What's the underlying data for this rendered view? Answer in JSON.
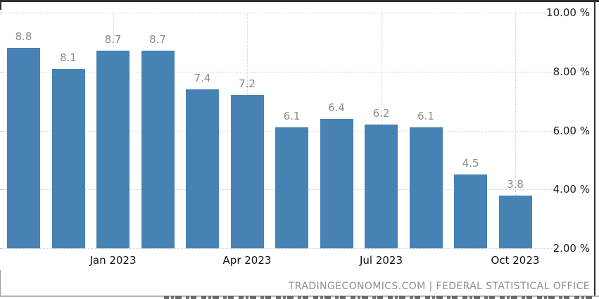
{
  "chart_data": {
    "type": "bar",
    "title": "",
    "xlabel": "",
    "ylabel": "",
    "values": [
      8.8,
      8.1,
      8.7,
      8.7,
      7.4,
      7.2,
      6.1,
      6.4,
      6.2,
      6.1,
      4.5,
      3.8
    ],
    "bar_value_labels": [
      "8.8",
      "8.1",
      "8.7",
      "8.7",
      "7.4",
      "7.2",
      "6.1",
      "6.4",
      "6.2",
      "6.1",
      "4.5",
      "3.8"
    ],
    "xticks": [
      {
        "label": "Jan 2023",
        "bar_index": 2
      },
      {
        "label": "Apr 2023",
        "bar_index": 5
      },
      {
        "label": "Jul 2023",
        "bar_index": 8
      },
      {
        "label": "Oct 2023",
        "bar_index": 11
      }
    ],
    "yticks": [
      {
        "label": "10.00 %",
        "value": 10
      },
      {
        "label": "8.00 %",
        "value": 8
      },
      {
        "label": "6.00 %",
        "value": 6
      },
      {
        "label": "4.00 %",
        "value": 4
      },
      {
        "label": "2.00 %",
        "value": 2
      }
    ],
    "ylim": [
      2,
      10
    ],
    "grid": "dotted",
    "legend": "none",
    "y_axis_side": "right"
  },
  "colors": {
    "bar": "#4682b4",
    "value_label": "#8c8c8c",
    "axis_label": "#111111",
    "grid": "#cfcfcf",
    "frame": "#2e2e2e",
    "attribution": "#8f8f8f"
  },
  "attribution": {
    "text": "TRADINGECONOMICS.COM | FEDERAL STATISTICAL OFFICE"
  }
}
